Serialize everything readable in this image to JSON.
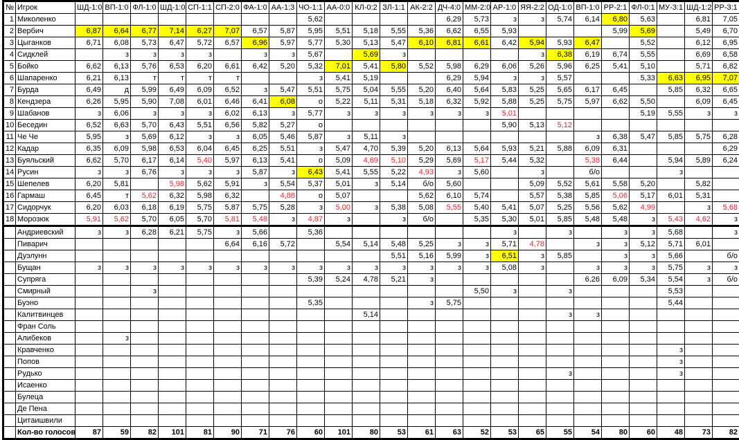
{
  "header": {
    "no": "№",
    "player": "Игрок"
  },
  "columns": [
    "ШД-1:0",
    "ВП-1:0",
    "ФЛ-1:0",
    "ШД-1:0",
    "СП-1:1",
    "СП-2:0",
    "ФА-1:0",
    "АА-1:3",
    "ЧО-1:1",
    "АА-0:0",
    "КЛ-0:2",
    "ЗЛ-1:1",
    "АК-2:2",
    "ДЧ-4:0",
    "ММ-2:0",
    "АР-1:0",
    "ЯЯ-2:2",
    "ОД-1:0",
    "ВП-1:0",
    "РР-2:1",
    "ФЛ-0:1",
    "МУ-3:1",
    "ШД-1:2",
    "РР-3:1"
  ],
  "colors": {
    "highlight": "#ffff00",
    "low": "#e8202a"
  },
  "rows": [
    {
      "no": "1",
      "name": "Миколенко",
      "cells": [
        "",
        "",
        "",
        "",
        "",
        "",
        "",
        "",
        "5,62",
        "",
        "",
        "",
        "",
        "6,29",
        "5,73",
        "з",
        "з",
        "5,74",
        "6,14",
        "6,80",
        "5,63",
        "",
        "6,81",
        "7,05"
      ],
      "yellow": [
        19
      ],
      "red": []
    },
    {
      "no": "2",
      "name": "Вербич",
      "cells": [
        "6,87",
        "6,64",
        "6,77",
        "7,14",
        "6,27",
        "7,07",
        "6,57",
        "5,87",
        "5,95",
        "5,51",
        "5,18",
        "5,55",
        "5,36",
        "6,62",
        "6,55",
        "5,93",
        "",
        "",
        "",
        "5,99",
        "5,69",
        "",
        "5,49",
        "6,70"
      ],
      "yellow": [
        0,
        1,
        2,
        3,
        4,
        5,
        20
      ],
      "red": []
    },
    {
      "no": "3",
      "name": "Цыганков",
      "cells": [
        "6,71",
        "6,08",
        "5,73",
        "6,47",
        "5,72",
        "6,57",
        "6,96",
        "5,97",
        "5,77",
        "5,30",
        "5,13",
        "5,47",
        "6,10",
        "6,81",
        "6,61",
        "6,42",
        "5,94",
        "5,93",
        "6,47",
        "",
        "5,52",
        "",
        "6,12",
        "6,95"
      ],
      "yellow": [
        6,
        12,
        13,
        14,
        16,
        18
      ],
      "red": []
    },
    {
      "no": "4",
      "name": "Сидклей",
      "cells": [
        "",
        "з",
        "з",
        "з",
        "з",
        "",
        "з",
        "з",
        "5,67",
        "",
        "5,69",
        "з",
        "",
        "",
        "",
        "",
        "з",
        "6,38",
        "6,19",
        "6,74",
        "5,55",
        "",
        "6,69",
        "6,58"
      ],
      "yellow": [
        10,
        17
      ],
      "red": []
    },
    {
      "no": "5",
      "name": "Бойко",
      "cells": [
        "6,62",
        "6,13",
        "5,76",
        "6,53",
        "6,20",
        "6,61",
        "6,42",
        "5,20",
        "5,32",
        "7,01",
        "5,41",
        "5,80",
        "5,52",
        "5,98",
        "6,29",
        "6,06",
        "5,26",
        "5,96",
        "6,25",
        "5,41",
        "5,10",
        "",
        "5,71",
        "6,82"
      ],
      "yellow": [
        9,
        11
      ],
      "red": []
    },
    {
      "no": "6",
      "name": "Шапаренко",
      "cells": [
        "6,21",
        "6,13",
        "т",
        "т",
        "т",
        "т",
        "",
        "",
        "з",
        "5,41",
        "5,19",
        "",
        "",
        "6,29",
        "5,94",
        "з",
        "з",
        "5,57",
        "",
        "",
        "5,33",
        "6,63",
        "6,95",
        "7,07"
      ],
      "yellow": [
        21,
        22,
        23
      ],
      "red": []
    },
    {
      "no": "7",
      "name": "Бурда",
      "cells": [
        "6,49",
        "д",
        "5,99",
        "6,49",
        "6,09",
        "6,52",
        "з",
        "5,47",
        "5,51",
        "5,75",
        "5,04",
        "5,55",
        "5,20",
        "6,40",
        "5,64",
        "5,83",
        "5,25",
        "5,65",
        "6,17",
        "6,45",
        "",
        "5,85",
        "6,32",
        "6,65"
      ],
      "yellow": [],
      "red": []
    },
    {
      "no": "8",
      "name": "Кендзера",
      "cells": [
        "6,26",
        "5,95",
        "5,90",
        "7,08",
        "6,01",
        "6,46",
        "6,41",
        "6,08",
        "о",
        "5,22",
        "5,11",
        "5,31",
        "5,18",
        "6,32",
        "5,92",
        "5,88",
        "5,25",
        "5,75",
        "5,97",
        "6,62",
        "5,50",
        "",
        "6,09",
        "6,45"
      ],
      "yellow": [
        7
      ],
      "red": []
    },
    {
      "no": "9",
      "name": "Шабанов",
      "cells": [
        "з",
        "6,06",
        "з",
        "з",
        "з",
        "6,02",
        "6,13",
        "з",
        "5,77",
        "з",
        "з",
        "з",
        "з",
        "з",
        "з",
        "5,01",
        "",
        "",
        "",
        "",
        "5,19",
        "5,55",
        "з",
        "з"
      ],
      "yellow": [],
      "red": [
        15
      ]
    },
    {
      "no": "10",
      "name": "Беседин",
      "cells": [
        "6,52",
        "6,63",
        "5,70",
        "6,43",
        "5,51",
        "6,56",
        "5,82",
        "5,27",
        "о",
        "",
        "",
        "",
        "",
        "",
        "",
        "5,90",
        "5,13",
        "5,12",
        "",
        "",
        "",
        "",
        "",
        ""
      ],
      "yellow": [],
      "red": [
        17
      ]
    },
    {
      "no": "11",
      "name": "Че Че",
      "cells": [
        "5,95",
        "з",
        "5,69",
        "6,12",
        "з",
        "з",
        "6,05",
        "5,46",
        "5,87",
        "з",
        "5,11",
        "з",
        "",
        "",
        "",
        "",
        "",
        "",
        "з",
        "6,38",
        "5,47",
        "5,85",
        "5,75",
        "6,28"
      ],
      "yellow": [],
      "red": []
    },
    {
      "no": "12",
      "name": "Кадар",
      "cells": [
        "6,35",
        "6,09",
        "5,98",
        "6,53",
        "6,04",
        "6,45",
        "6,25",
        "5,51",
        "з",
        "5,47",
        "4,70",
        "5,39",
        "5,20",
        "6,13",
        "5,64",
        "5,93",
        "5,21",
        "5,88",
        "6,09",
        "6,31",
        "",
        "",
        "",
        "6,29"
      ],
      "yellow": [],
      "red": []
    },
    {
      "no": "13",
      "name": "Буяльский",
      "cells": [
        "6,62",
        "5,70",
        "6,17",
        "6,14",
        "5,40",
        "5,97",
        "6,13",
        "5,41",
        "о",
        "5,09",
        "4,69",
        "5,10",
        "5,29",
        "5,69",
        "5,17",
        "5,44",
        "5,32",
        "",
        "5,38",
        "6,44",
        "",
        "5,94",
        "5,89",
        "6,24"
      ],
      "yellow": [],
      "red": [
        4,
        10,
        11,
        14,
        18
      ]
    },
    {
      "no": "14",
      "name": "Русин",
      "cells": [
        "з",
        "з",
        "6,76",
        "з",
        "з",
        "з",
        "5,87",
        "з",
        "6,43",
        "5,41",
        "5,55",
        "5,22",
        "4,93",
        "з",
        "5,60",
        "",
        "з",
        "",
        "б/о",
        "",
        "",
        "з",
        "",
        ""
      ],
      "yellow": [
        8
      ],
      "red": [
        12
      ]
    },
    {
      "no": "15",
      "name": "Шепелев",
      "cells": [
        "6,20",
        "5,81",
        "",
        "5,98",
        "5,62",
        "5,91",
        "з",
        "5,54",
        "5,37",
        "5,01",
        "з",
        "5,14",
        "б/о",
        "5,60",
        "",
        "",
        "5,09",
        "5,52",
        "5,61",
        "5,58",
        "5,20",
        "",
        "5,82",
        ""
      ],
      "yellow": [],
      "red": [
        3
      ]
    },
    {
      "no": "16",
      "name": "Гармаш",
      "cells": [
        "6,45",
        "т",
        "5,62",
        "6,32",
        "5,98",
        "6,32",
        "",
        "4,88",
        "о",
        "5,07",
        "",
        "",
        "5,62",
        "6,10",
        "5,74",
        "",
        "5,57",
        "5,38",
        "5,85",
        "5,06",
        "5,17",
        "6,01",
        "5,31",
        ""
      ],
      "yellow": [],
      "red": [
        2,
        7,
        19
      ]
    },
    {
      "no": "17",
      "name": "Сидорчук",
      "cells": [
        "6,20",
        "6,03",
        "6,18",
        "6,19",
        "5,75",
        "5,87",
        "5,75",
        "5,28",
        "з",
        "5,00",
        "з",
        "5,38",
        "5,08",
        "5,55",
        "5,40",
        "5,41",
        "5,07",
        "5,25",
        "5,56",
        "5,62",
        "4,99",
        "",
        "з",
        "5,68"
      ],
      "yellow": [],
      "red": [
        9,
        13,
        20,
        23
      ]
    },
    {
      "no": "18",
      "name": "Морозюк",
      "cells": [
        "5,91",
        "5,62",
        "5,70",
        "6,05",
        "5,70",
        "5,81",
        "5,48",
        "з",
        "4,87",
        "з",
        "",
        "з",
        "б/о",
        "",
        "5,35",
        "5,30",
        "5,01",
        "5,85",
        "5,48",
        "5,48",
        "з",
        "5,43",
        "4,62",
        "з"
      ],
      "yellow": [],
      "red": [
        0,
        1,
        5,
        6,
        8,
        21,
        22
      ]
    },
    {
      "no": "",
      "name": "Андриевский",
      "cells": [
        "з",
        "з",
        "6,28",
        "6,21",
        "5,75",
        "з",
        "5,66",
        "",
        "5,36",
        "",
        "",
        "",
        "",
        "",
        "",
        "з",
        "",
        "з",
        "",
        "з",
        "з",
        "5,68",
        "",
        "з"
      ],
      "yellow": [],
      "red": []
    },
    {
      "no": "",
      "name": "Пиварич",
      "cells": [
        "",
        "",
        "",
        "",
        "",
        "6,64",
        "6,16",
        "5,72",
        "",
        "5,54",
        "5,14",
        "5,48",
        "5,25",
        "з",
        "з",
        "5,71",
        "4,78",
        "",
        "з",
        "з",
        "5,12",
        "5,71",
        "6,01",
        ""
      ],
      "yellow": [],
      "red": [
        16
      ]
    },
    {
      "no": "",
      "name": "Дуэлунн",
      "cells": [
        "",
        "",
        "",
        "",
        "",
        "",
        "",
        "",
        "",
        "",
        "",
        "5,51",
        "5,16",
        "5,99",
        "з",
        "6,51",
        "з",
        "5,85",
        "",
        "з",
        "з",
        "5,66",
        "",
        "б/о"
      ],
      "yellow": [
        15
      ],
      "red": []
    },
    {
      "no": "",
      "name": "Бущан",
      "cells": [
        "з",
        "з",
        "з",
        "з",
        "з",
        "з",
        "з",
        "з",
        "з",
        "з",
        "з",
        "з",
        "з",
        "з",
        "з",
        "5,08",
        "з",
        "",
        "з",
        "з",
        "з",
        "5,75",
        "з",
        "з"
      ],
      "yellow": [],
      "red": []
    },
    {
      "no": "",
      "name": "Супряга",
      "cells": [
        "",
        "",
        "",
        "",
        "",
        "",
        "",
        "",
        "5,39",
        "5,24",
        "4,78",
        "5,21",
        "з",
        "",
        "",
        "",
        "",
        "",
        "6,26",
        "6,09",
        "5,34",
        "5,54",
        "з",
        "б/о"
      ],
      "yellow": [],
      "red": []
    },
    {
      "no": "",
      "name": "Смирный",
      "cells": [
        "",
        "",
        "з",
        "",
        "",
        "",
        "",
        "",
        "",
        "",
        "",
        "",
        "",
        "",
        "5,50",
        "з",
        "",
        "з",
        "",
        "",
        "",
        "5,53",
        "",
        ""
      ],
      "yellow": [],
      "red": []
    },
    {
      "no": "",
      "name": "Буэно",
      "cells": [
        "",
        "",
        "",
        "",
        "",
        "",
        "",
        "",
        "5,35",
        "",
        "",
        "",
        "з",
        "5,75",
        "",
        "",
        "",
        "",
        "",
        "",
        "",
        "5,44",
        "",
        ""
      ],
      "yellow": [],
      "red": []
    },
    {
      "no": "",
      "name": "Калитвинцев",
      "cells": [
        "",
        "",
        "",
        "",
        "",
        "",
        "",
        "",
        "",
        "",
        "5,14",
        "",
        "",
        "",
        "",
        "",
        "",
        "з",
        "з",
        "",
        "",
        "",
        "",
        ""
      ],
      "yellow": [],
      "red": []
    },
    {
      "no": "",
      "name": "Фран Соль",
      "cells": [
        "",
        "",
        "",
        "",
        "",
        "",
        "",
        "",
        "",
        "",
        "",
        "",
        "",
        "",
        "",
        "",
        "",
        "",
        "",
        "",
        "",
        "",
        "",
        ""
      ],
      "yellow": [],
      "red": []
    },
    {
      "no": "",
      "name": "Алибеков",
      "cells": [
        "",
        "з",
        "",
        "",
        "",
        "",
        "",
        "",
        "",
        "",
        "",
        "",
        "",
        "",
        "",
        "",
        "",
        "",
        "",
        "",
        "",
        "",
        "",
        ""
      ],
      "yellow": [],
      "red": []
    },
    {
      "no": "",
      "name": "Кравченко",
      "cells": [
        "",
        "",
        "",
        "",
        "",
        "",
        "",
        "",
        "",
        "",
        "",
        "",
        "",
        "",
        "",
        "",
        "",
        "",
        "",
        "",
        "",
        "з",
        "",
        ""
      ],
      "yellow": [],
      "red": []
    },
    {
      "no": "",
      "name": "Попов",
      "cells": [
        "",
        "",
        "",
        "",
        "",
        "",
        "",
        "",
        "",
        "",
        "",
        "",
        "",
        "",
        "",
        "",
        "",
        "",
        "",
        "",
        "",
        "з",
        "",
        ""
      ],
      "yellow": [],
      "red": []
    },
    {
      "no": "",
      "name": "Рудько",
      "cells": [
        "",
        "",
        "",
        "",
        "",
        "",
        "",
        "",
        "",
        "",
        "",
        "",
        "",
        "",
        "",
        "",
        "",
        "з",
        "",
        "",
        "",
        "з",
        "",
        ""
      ],
      "yellow": [],
      "red": []
    },
    {
      "no": "",
      "name": "Исаенко",
      "cells": [
        "",
        "",
        "",
        "",
        "",
        "",
        "",
        "",
        "",
        "",
        "",
        "",
        "",
        "",
        "",
        "",
        "",
        "",
        "",
        "",
        "",
        "",
        "",
        ""
      ],
      "yellow": [],
      "red": []
    },
    {
      "no": "",
      "name": "Булеца",
      "cells": [
        "",
        "",
        "",
        "",
        "",
        "",
        "",
        "",
        "",
        "",
        "",
        "",
        "",
        "",
        "",
        "",
        "",
        "",
        "",
        "",
        "",
        "",
        "",
        ""
      ],
      "yellow": [],
      "red": []
    },
    {
      "no": "",
      "name": "Де Пена",
      "cells": [
        "",
        "",
        "",
        "",
        "",
        "",
        "",
        "",
        "",
        "",
        "",
        "",
        "",
        "",
        "",
        "",
        "",
        "",
        "",
        "",
        "",
        "",
        "",
        ""
      ],
      "yellow": [],
      "red": []
    },
    {
      "no": "",
      "name": "Цитаишвили",
      "cells": [
        "",
        "",
        "",
        "",
        "",
        "",
        "",
        "",
        "",
        "",
        "",
        "",
        "",
        "",
        "",
        "",
        "",
        "",
        "",
        "",
        "",
        "",
        "",
        ""
      ],
      "yellow": [],
      "red": []
    }
  ],
  "totals": {
    "label": "Кол-во голосов",
    "values": [
      "87",
      "59",
      "82",
      "101",
      "81",
      "90",
      "71",
      "76",
      "60",
      "101",
      "80",
      "53",
      "61",
      "63",
      "52",
      "53",
      "65",
      "55",
      "54",
      "80",
      "60",
      "48",
      "73",
      "82"
    ]
  }
}
